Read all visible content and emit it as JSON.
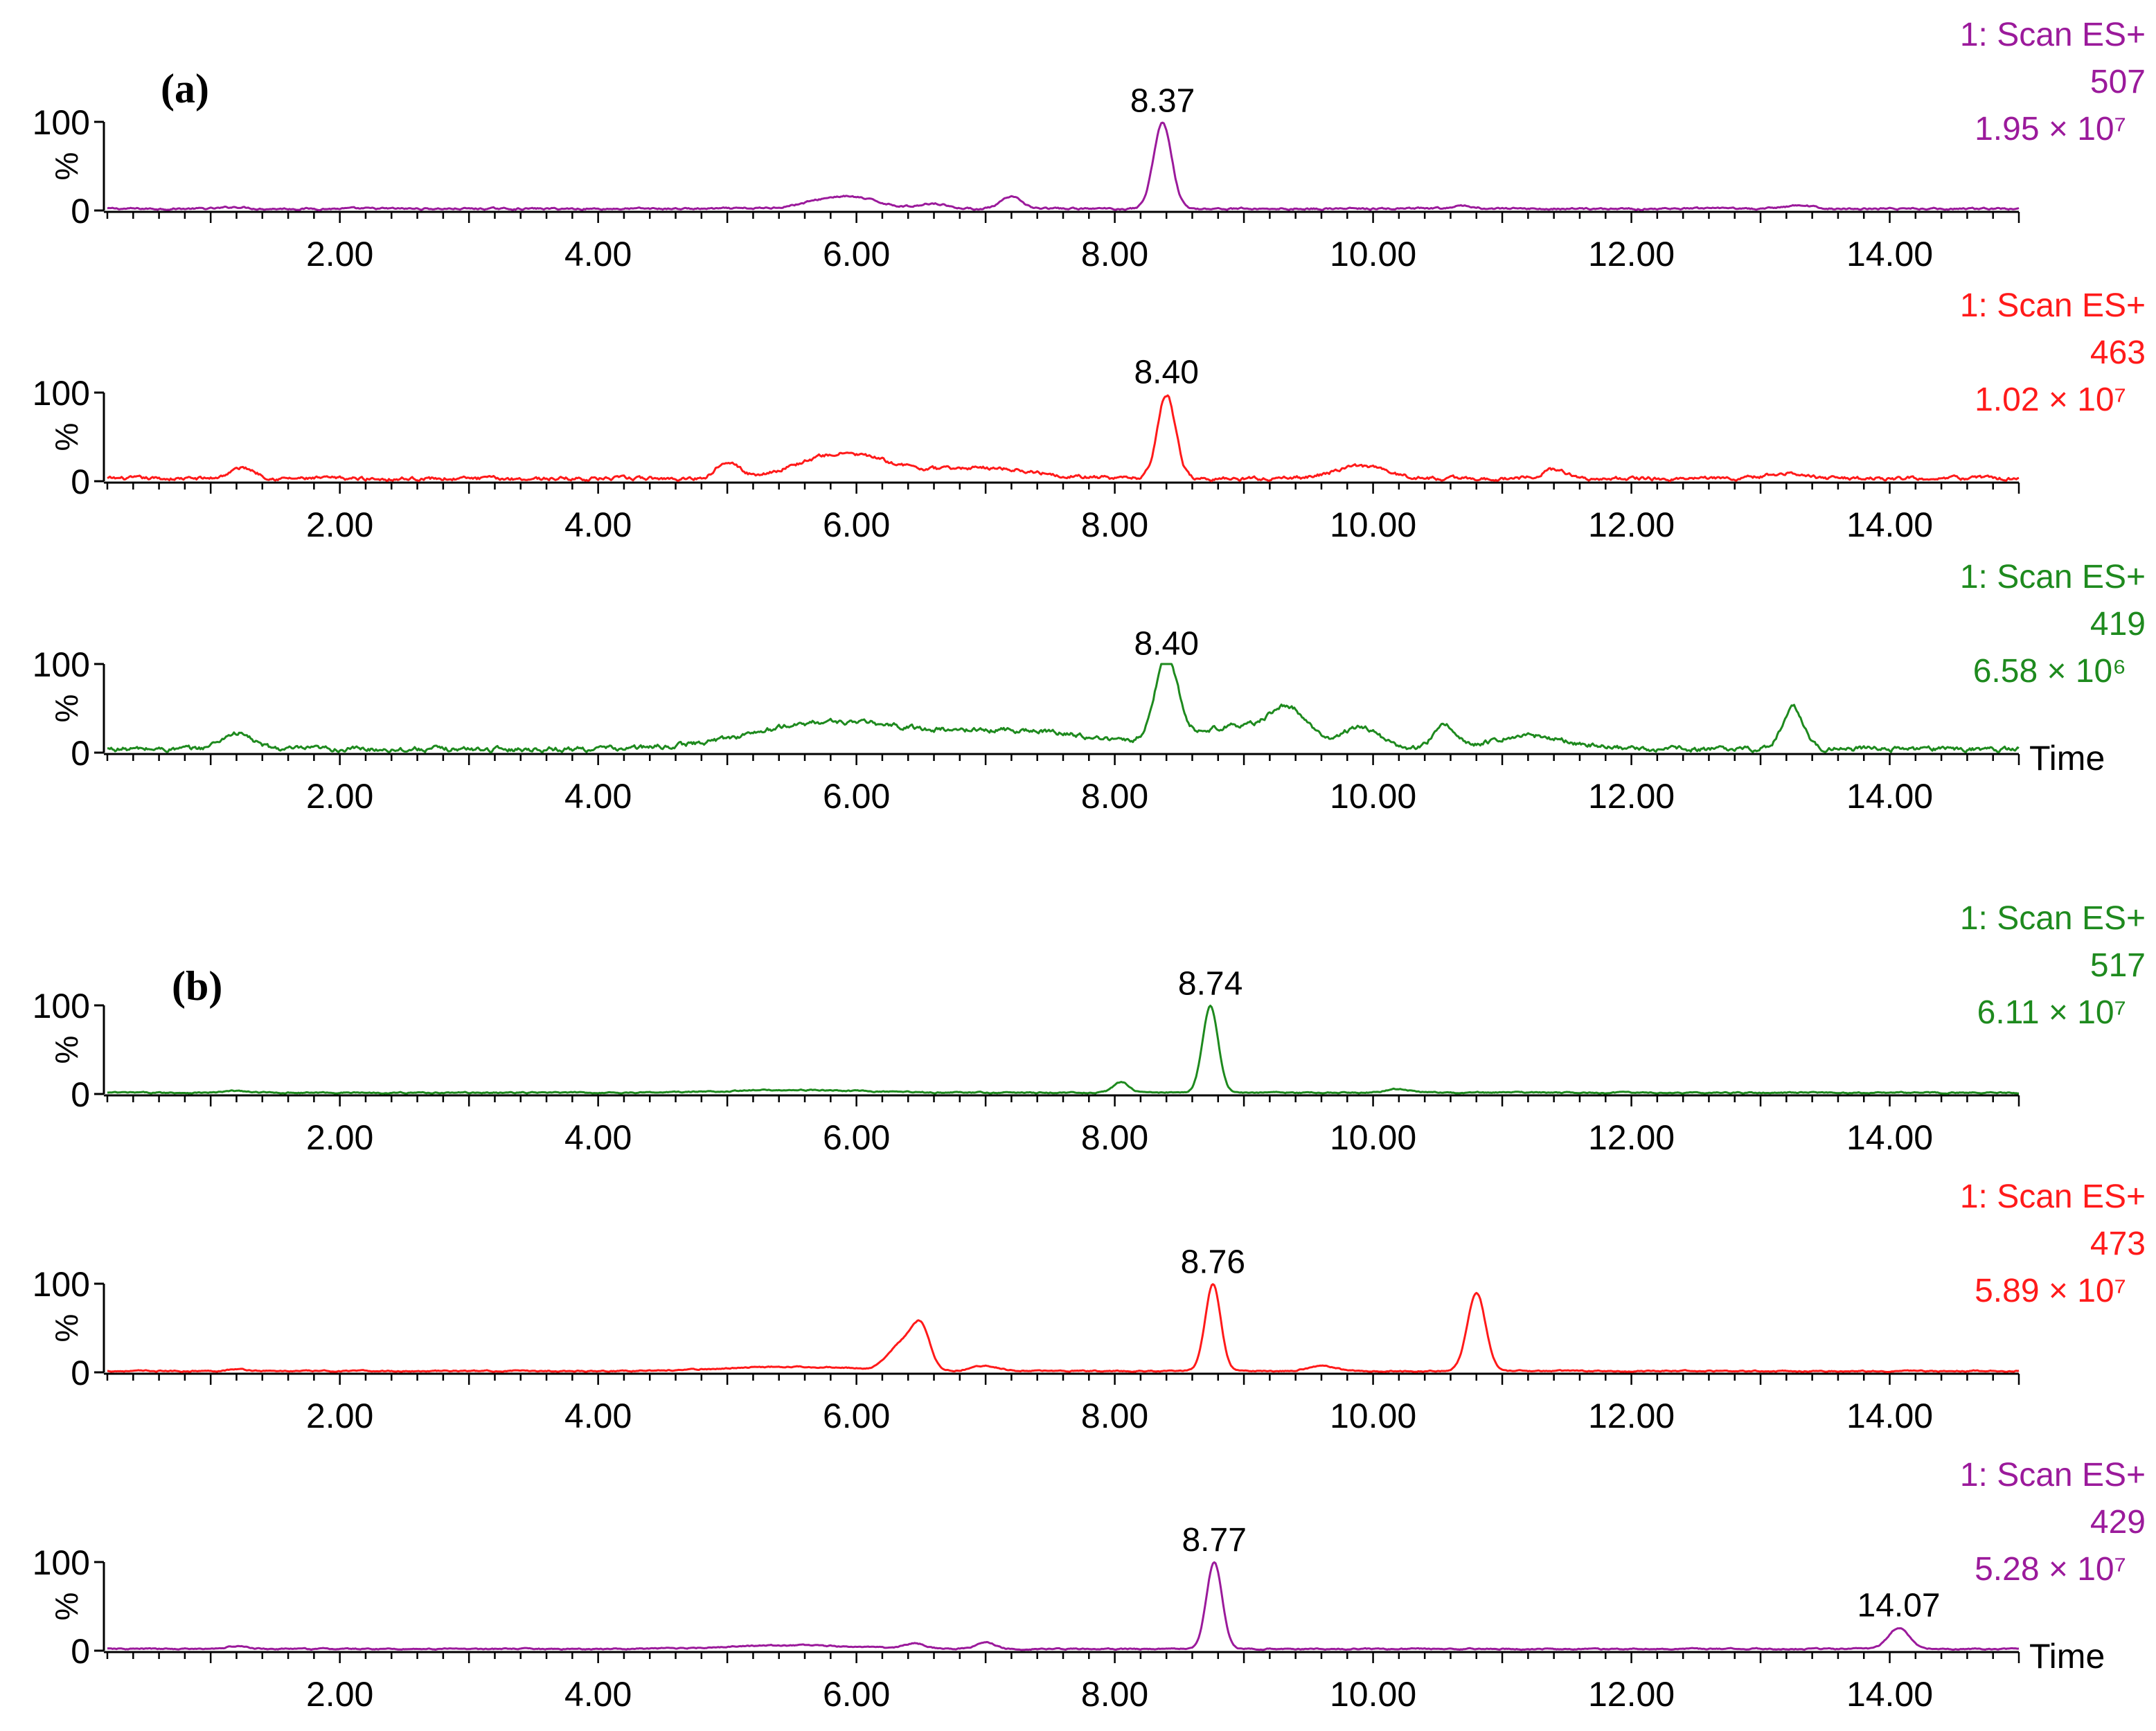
{
  "figure": {
    "panel_labels": [
      "(a)",
      "(b)"
    ],
    "y_axis_unit": "%",
    "y_max_label": "100",
    "y_zero_label": "0",
    "time_label": "Time",
    "colors": {
      "purple": "#9b1a9b",
      "red": "#ff1a1a",
      "green": "#1e8a1e",
      "axis": "#000000"
    }
  },
  "chart_data": [
    {
      "type": "line",
      "panel": "(a)",
      "scan": "1: Scan ES+",
      "mass": "507",
      "intensity": "1.95 × 10⁷",
      "color": "#9b1a9b",
      "peak_labels": [
        {
          "x": 8.37,
          "label": "8.37"
        }
      ],
      "xlim": [
        0.2,
        15.0
      ],
      "ylim": [
        0,
        100
      ],
      "xticks": [
        2.0,
        4.0,
        6.0,
        8.0,
        10.0,
        12.0,
        14.0
      ],
      "xtick_labels": [
        "2.00",
        "4.00",
        "6.00",
        "8.00",
        "10.00",
        "12.00",
        "14.00"
      ],
      "show_time_label": false,
      "baseline": 2,
      "noise": 1.5,
      "peaks": [
        [
          1.2,
          2,
          0.08
        ],
        [
          5.9,
          14,
          0.25
        ],
        [
          6.6,
          6,
          0.1
        ],
        [
          7.2,
          13,
          0.08
        ],
        [
          8.37,
          97,
          0.07
        ],
        [
          10.7,
          3,
          0.08
        ],
        [
          13.3,
          4,
          0.1
        ]
      ]
    },
    {
      "type": "line",
      "panel": "(a)",
      "scan": "1: Scan ES+",
      "mass": "463",
      "intensity": "1.02 × 10⁷",
      "color": "#ff1a1a",
      "peak_labels": [
        {
          "x": 8.4,
          "label": "8.40"
        }
      ],
      "xlim": [
        0.2,
        15.0
      ],
      "ylim": [
        0,
        100
      ],
      "xticks": [
        2.0,
        4.0,
        6.0,
        8.0,
        10.0,
        12.0,
        14.0
      ],
      "xtick_labels": [
        "2.00",
        "4.00",
        "6.00",
        "8.00",
        "10.00",
        "12.00",
        "14.00"
      ],
      "show_time_label": false,
      "baseline": 3,
      "noise": 3,
      "peaks": [
        [
          1.25,
          12,
          0.1
        ],
        [
          5.0,
          20,
          0.08
        ],
        [
          5.9,
          28,
          0.35
        ],
        [
          7.0,
          12,
          0.4
        ],
        [
          8.4,
          95,
          0.07
        ],
        [
          9.9,
          14,
          0.2
        ],
        [
          11.4,
          10,
          0.1
        ],
        [
          13.2,
          6,
          0.15
        ]
      ]
    },
    {
      "type": "line",
      "panel": "(a)",
      "scan": "1: Scan ES+",
      "mass": "419",
      "intensity": "6.58 × 10⁶",
      "color": "#1e8a1e",
      "peak_labels": [
        {
          "x": 8.4,
          "label": "8.40"
        }
      ],
      "xlim": [
        0.2,
        15.0
      ],
      "ylim": [
        0,
        100
      ],
      "xticks": [
        2.0,
        4.0,
        6.0,
        8.0,
        10.0,
        12.0,
        14.0
      ],
      "xtick_labels": [
        "2.00",
        "4.00",
        "6.00",
        "8.00",
        "10.00",
        "12.00",
        "14.00"
      ],
      "show_time_label": true,
      "baseline": 4,
      "noise": 4,
      "peaks": [
        [
          1.2,
          18,
          0.12
        ],
        [
          5.8,
          30,
          0.6
        ],
        [
          7.3,
          20,
          0.6
        ],
        [
          8.4,
          94,
          0.09
        ],
        [
          8.9,
          25,
          0.3
        ],
        [
          9.35,
          40,
          0.15
        ],
        [
          9.9,
          25,
          0.15
        ],
        [
          10.55,
          28,
          0.08
        ],
        [
          11.2,
          15,
          0.3
        ],
        [
          13.25,
          48,
          0.08
        ]
      ]
    },
    {
      "type": "line",
      "panel": "(b)",
      "scan": "1: Scan ES+",
      "mass": "517",
      "intensity": "6.11 × 10⁷",
      "color": "#1e8a1e",
      "peak_labels": [
        {
          "x": 8.74,
          "label": "8.74"
        }
      ],
      "xlim": [
        0.2,
        15.0
      ],
      "ylim": [
        0,
        100
      ],
      "xticks": [
        2.0,
        4.0,
        6.0,
        8.0,
        10.0,
        12.0,
        14.0
      ],
      "xtick_labels": [
        "2.00",
        "4.00",
        "6.00",
        "8.00",
        "10.00",
        "12.00",
        "14.00"
      ],
      "show_time_label": false,
      "baseline": 1.5,
      "noise": 1,
      "peaks": [
        [
          1.2,
          2,
          0.08
        ],
        [
          5.5,
          3,
          0.5
        ],
        [
          8.05,
          12,
          0.06
        ],
        [
          8.74,
          98,
          0.06
        ],
        [
          10.2,
          4,
          0.1
        ]
      ]
    },
    {
      "type": "line",
      "panel": "(b)",
      "scan": "1: Scan ES+",
      "mass": "473",
      "intensity": "5.89 × 10⁷",
      "color": "#ff1a1a",
      "peak_labels": [
        {
          "x": 8.76,
          "label": "8.76"
        }
      ],
      "xlim": [
        0.2,
        15.0
      ],
      "ylim": [
        0,
        100
      ],
      "xticks": [
        2.0,
        4.0,
        6.0,
        8.0,
        10.0,
        12.0,
        14.0
      ],
      "xtick_labels": [
        "2.00",
        "4.00",
        "6.00",
        "8.00",
        "10.00",
        "12.00",
        "14.00"
      ],
      "show_time_label": false,
      "baseline": 1.5,
      "noise": 1,
      "peaks": [
        [
          1.2,
          2,
          0.08
        ],
        [
          5.5,
          5,
          0.5
        ],
        [
          6.35,
          30,
          0.1
        ],
        [
          6.5,
          45,
          0.07
        ],
        [
          7.0,
          6,
          0.1
        ],
        [
          8.76,
          98,
          0.06
        ],
        [
          9.6,
          6,
          0.1
        ],
        [
          10.8,
          88,
          0.07
        ]
      ]
    },
    {
      "type": "line",
      "panel": "(b)",
      "scan": "1: Scan ES+",
      "mass": "429",
      "intensity": "5.28 × 10⁷",
      "color": "#9b1a9b",
      "peak_labels": [
        {
          "x": 8.77,
          "label": "8.77"
        },
        {
          "x": 14.07,
          "label": "14.07"
        }
      ],
      "xlim": [
        0.2,
        15.0
      ],
      "ylim": [
        0,
        100
      ],
      "xticks": [
        2.0,
        4.0,
        6.0,
        8.0,
        10.0,
        12.0,
        14.0
      ],
      "xtick_labels": [
        "2.00",
        "4.00",
        "6.00",
        "8.00",
        "10.00",
        "12.00",
        "14.00"
      ],
      "show_time_label": true,
      "baseline": 2,
      "noise": 1,
      "peaks": [
        [
          1.2,
          3,
          0.08
        ],
        [
          5.5,
          4,
          0.5
        ],
        [
          6.45,
          6,
          0.08
        ],
        [
          7.0,
          8,
          0.07
        ],
        [
          8.77,
          98,
          0.06
        ],
        [
          14.07,
          24,
          0.08
        ]
      ]
    }
  ]
}
